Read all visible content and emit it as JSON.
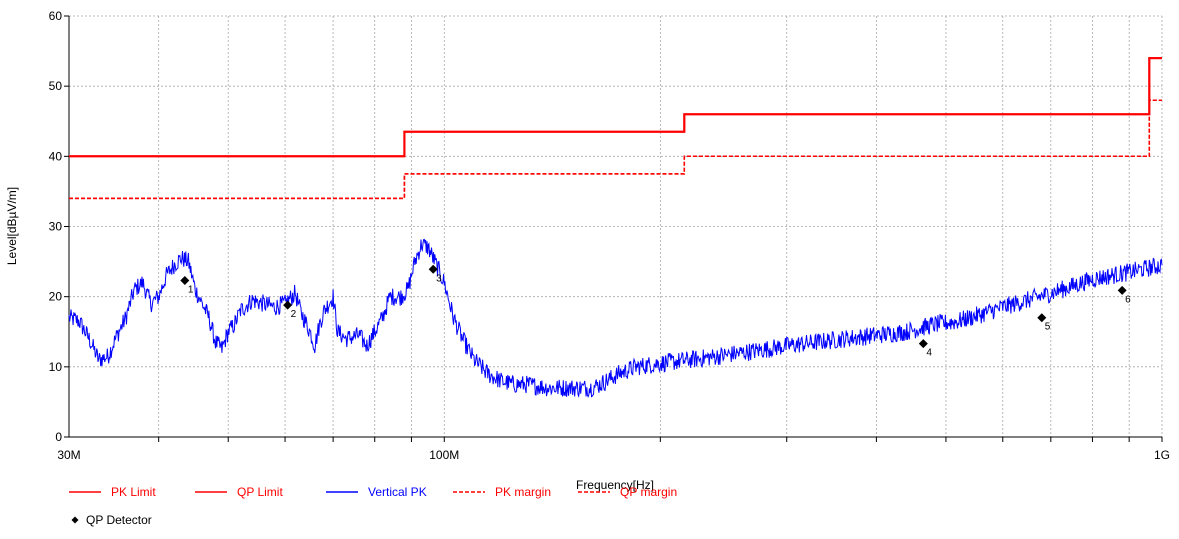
{
  "chart_data": {
    "type": "line",
    "xlabel": "Frequency[Hz]",
    "ylabel": "Level[dBµV/m]",
    "x_scale": "log",
    "xlim": [
      30000000,
      1000000000
    ],
    "ylim": [
      0,
      60
    ],
    "grid": true,
    "x_tick_labels": [
      {
        "value": 30000000,
        "label": "30M"
      },
      {
        "value": 100000000,
        "label": "100M"
      },
      {
        "value": 1000000000,
        "label": "1G"
      }
    ],
    "y_ticks": [
      0,
      10,
      20,
      30,
      40,
      50,
      60
    ],
    "series": [
      {
        "name": "PK Limit",
        "color": "#ff0000",
        "style": "solid",
        "step_points": [
          [
            30000000,
            40
          ],
          [
            88000000,
            40
          ],
          [
            88000000,
            43.5
          ],
          [
            216000000,
            43.5
          ],
          [
            216000000,
            46
          ],
          [
            960000000,
            46
          ],
          [
            960000000,
            54
          ],
          [
            1000000000,
            54
          ]
        ]
      },
      {
        "name": "QP Limit",
        "color": "#ff0000",
        "style": "solid",
        "step_points": [
          [
            30000000,
            40
          ],
          [
            88000000,
            40
          ],
          [
            88000000,
            43.5
          ],
          [
            216000000,
            43.5
          ],
          [
            216000000,
            46
          ],
          [
            960000000,
            46
          ],
          [
            960000000,
            54
          ],
          [
            1000000000,
            54
          ]
        ]
      },
      {
        "name": "Vertical PK",
        "color": "#0000ff",
        "style": "solid",
        "points": [
          [
            30000000,
            17
          ],
          [
            31000000,
            16.5
          ],
          [
            32000000,
            14
          ],
          [
            33000000,
            11
          ],
          [
            34000000,
            11.5
          ],
          [
            35000000,
            14.5
          ],
          [
            36000000,
            17
          ],
          [
            37000000,
            21
          ],
          [
            38000000,
            22
          ],
          [
            39000000,
            19
          ],
          [
            40000000,
            20
          ],
          [
            41000000,
            23
          ],
          [
            42000000,
            24.5
          ],
          [
            43000000,
            25.5
          ],
          [
            44000000,
            25
          ],
          [
            45000000,
            21
          ],
          [
            46000000,
            19
          ],
          [
            47000000,
            17
          ],
          [
            48000000,
            13.5
          ],
          [
            49000000,
            12.5
          ],
          [
            50000000,
            15
          ],
          [
            51000000,
            16
          ],
          [
            52000000,
            18
          ],
          [
            54000000,
            19.5
          ],
          [
            56000000,
            19
          ],
          [
            58000000,
            18.5
          ],
          [
            60000000,
            19
          ],
          [
            62000000,
            20.5
          ],
          [
            63000000,
            18
          ],
          [
            65000000,
            15
          ],
          [
            66000000,
            13
          ],
          [
            67000000,
            16
          ],
          [
            68000000,
            18
          ],
          [
            70000000,
            20
          ],
          [
            71000000,
            15
          ],
          [
            73000000,
            14
          ],
          [
            76000000,
            14.5
          ],
          [
            78000000,
            13
          ],
          [
            80000000,
            15
          ],
          [
            82000000,
            17
          ],
          [
            84000000,
            20
          ],
          [
            87000000,
            20
          ],
          [
            89000000,
            21
          ],
          [
            91000000,
            25
          ],
          [
            93000000,
            27.5
          ],
          [
            95000000,
            27
          ],
          [
            97000000,
            25
          ],
          [
            100000000,
            22
          ],
          [
            103000000,
            17
          ],
          [
            106000000,
            14
          ],
          [
            110000000,
            11
          ],
          [
            115000000,
            9
          ],
          [
            120000000,
            8
          ],
          [
            125000000,
            7.5
          ],
          [
            130000000,
            7.5
          ],
          [
            140000000,
            7
          ],
          [
            150000000,
            7
          ],
          [
            160000000,
            7
          ],
          [
            165000000,
            7.5
          ],
          [
            175000000,
            9
          ],
          [
            185000000,
            10
          ],
          [
            200000000,
            10.5
          ],
          [
            220000000,
            11
          ],
          [
            240000000,
            11.5
          ],
          [
            260000000,
            12
          ],
          [
            280000000,
            12.5
          ],
          [
            300000000,
            13
          ],
          [
            330000000,
            13.5
          ],
          [
            360000000,
            14
          ],
          [
            400000000,
            14.5
          ],
          [
            440000000,
            15
          ],
          [
            480000000,
            16
          ],
          [
            520000000,
            16.5
          ],
          [
            560000000,
            17.5
          ],
          [
            600000000,
            18.5
          ],
          [
            650000000,
            19.5
          ],
          [
            700000000,
            20.5
          ],
          [
            750000000,
            21.5
          ],
          [
            800000000,
            22.5
          ],
          [
            850000000,
            23
          ],
          [
            900000000,
            23.5
          ],
          [
            950000000,
            24
          ],
          [
            1000000000,
            24.5
          ]
        ]
      },
      {
        "name": "PK margin",
        "color": "#ff0000",
        "style": "dashed",
        "step_points": [
          [
            30000000,
            34
          ],
          [
            88000000,
            34
          ],
          [
            88000000,
            37.5
          ],
          [
            216000000,
            37.5
          ],
          [
            216000000,
            40
          ],
          [
            960000000,
            40
          ],
          [
            960000000,
            48
          ],
          [
            1000000000,
            48
          ]
        ]
      },
      {
        "name": "QP margin",
        "color": "#ff0000",
        "style": "dashed",
        "step_points": [
          [
            30000000,
            34
          ],
          [
            88000000,
            34
          ],
          [
            88000000,
            37.5
          ],
          [
            216000000,
            37.5
          ],
          [
            216000000,
            40
          ],
          [
            960000000,
            40
          ],
          [
            960000000,
            48
          ],
          [
            1000000000,
            48
          ]
        ]
      },
      {
        "name": "QP Detector",
        "color": "#000000",
        "style": "markers",
        "points": [
          {
            "x": 43500000,
            "y": 22.3,
            "label": "1"
          },
          {
            "x": 60500000,
            "y": 18.8,
            "label": "2"
          },
          {
            "x": 96500000,
            "y": 23.9,
            "label": "3"
          },
          {
            "x": 465000000,
            "y": 13.3,
            "label": "4"
          },
          {
            "x": 680000000,
            "y": 17.0,
            "label": "5"
          },
          {
            "x": 880000000,
            "y": 20.9,
            "label": "6"
          }
        ]
      }
    ],
    "legend": {
      "placement": "bottom",
      "entries": [
        "PK Limit",
        "QP Limit",
        "Vertical PK",
        "PK margin",
        "QP margin",
        "QP Detector"
      ]
    }
  }
}
